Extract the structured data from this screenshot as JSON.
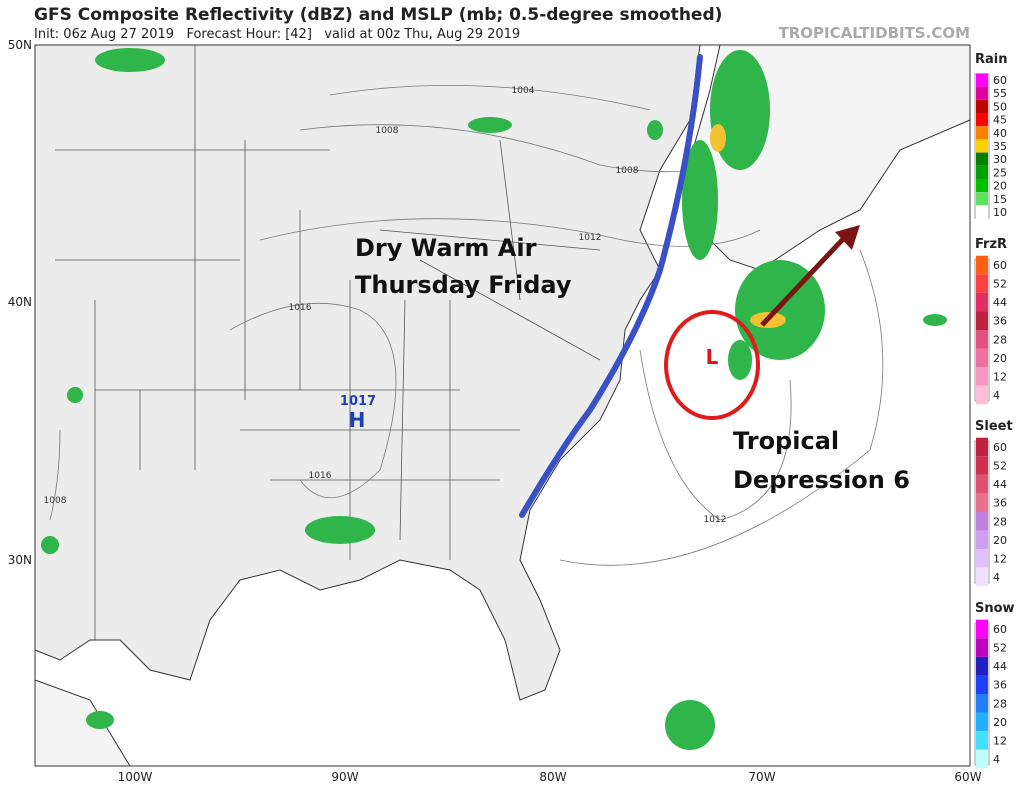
{
  "header": {
    "title": "GFS Composite Reflectivity (dBZ) and MSLP (mb; 0.5-degree smoothed)",
    "subtitle": "Init: 06z Aug 27 2019   Forecast Hour: [42]   valid at 00z Thu, Aug 29 2019",
    "source": "TROPICALTIDBITS.COM"
  },
  "map": {
    "lat_labels": [
      "50N",
      "40N",
      "30N"
    ],
    "lon_labels": [
      "100W",
      "90W",
      "80W",
      "70W",
      "60W"
    ],
    "isobar_labels": [
      "1004",
      "1008",
      "1008",
      "1012",
      "1016",
      "1016",
      "1008",
      "1012"
    ],
    "high": {
      "pressure": "1017",
      "label": "H"
    },
    "low": {
      "label": "L"
    }
  },
  "annotations": {
    "front": [
      "Dry Warm Air",
      "Thursday Friday"
    ],
    "storm": [
      "Tropical",
      "Depression 6"
    ]
  },
  "legends": [
    {
      "title": "Rain",
      "ticks": [
        60,
        55,
        50,
        45,
        40,
        35,
        30,
        25,
        20,
        15,
        10
      ]
    },
    {
      "title": "FrzR",
      "ticks": [
        60,
        52,
        44,
        36,
        28,
        20,
        12,
        4
      ]
    },
    {
      "title": "Sleet",
      "ticks": [
        60,
        52,
        44,
        36,
        28,
        20,
        12,
        4
      ]
    },
    {
      "title": "Snow",
      "ticks": [
        60,
        52,
        44,
        36,
        28,
        20,
        12,
        4
      ]
    }
  ]
}
